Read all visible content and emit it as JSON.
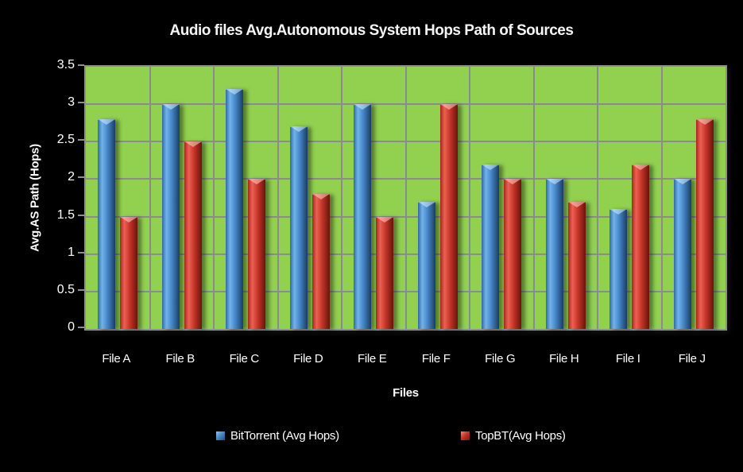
{
  "page": {
    "background": "#000000",
    "text_color": "#ffffff"
  },
  "chart_data": {
    "type": "bar",
    "title": "Audio files Avg.Autonomous System Hops Path of Sources",
    "xlabel": "Files",
    "ylabel": "Avg.AS Path (Hops)",
    "categories": [
      "File A",
      "File B",
      "File C",
      "File D",
      "File E",
      "File F",
      "File G",
      "File H",
      "File I",
      "File J"
    ],
    "series": [
      {
        "name": "BitTorrent (Avg Hops)",
        "color": "#4486c8",
        "values": [
          2.8,
          3.0,
          3.2,
          2.7,
          3.0,
          1.7,
          2.2,
          2.0,
          1.6,
          2.0
        ]
      },
      {
        "name": "TopBT(Avg Hops)",
        "color": "#c63529",
        "values": [
          1.5,
          2.5,
          2.0,
          1.8,
          1.5,
          3.0,
          2.0,
          1.7,
          2.2,
          2.8
        ]
      }
    ],
    "ylim": [
      0,
      3.5
    ],
    "ytick_step": 0.5,
    "ytick_labels": [
      "0",
      "0.5",
      "1",
      "1.5",
      "2",
      "2.5",
      "3",
      "3.5"
    ],
    "grid": true,
    "gridline_color": "#8a8a94",
    "plot_background": "#92d050",
    "plot_border_color": "#8e8e8e",
    "legend_position": "bottom"
  }
}
